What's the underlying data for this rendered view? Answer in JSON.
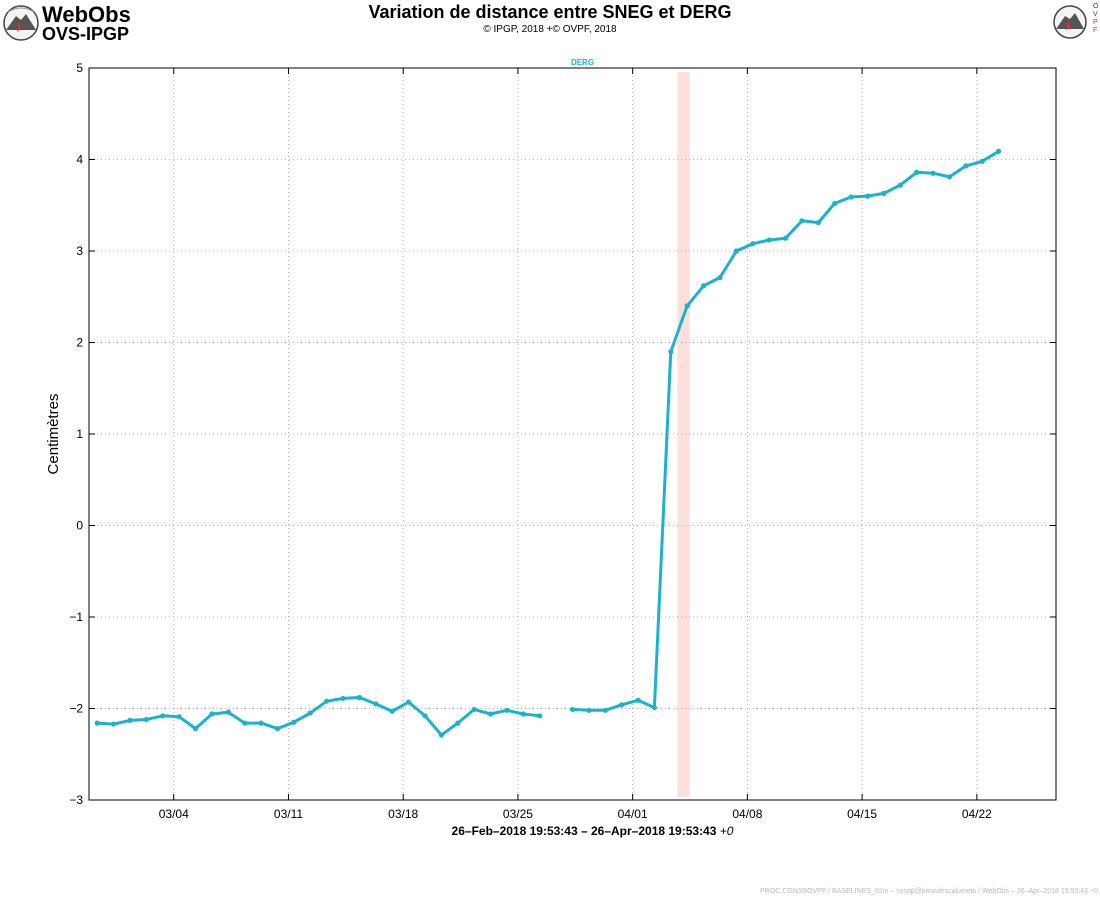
{
  "logo": {
    "line1": "WebObs",
    "line2": "OVS-IPGP",
    "right_logo_text": "OVPF"
  },
  "title": "Variation de distance entre SNEG et DERG",
  "subtitle": "© IPGP, 2018 +© OVPF, 2018",
  "footer": "PROC.CGNSSOVPF / BASELINES_02m – sysop@pitondescalumets / WebObs – 26–Apr–2018 19:53:43 +0",
  "colors": {
    "series": "#1fb1c9",
    "event_band": "#fde0dc",
    "logo_red": "#e02b2b"
  },
  "chart_data": {
    "type": "line",
    "title": "Variation de distance entre SNEG et DERG",
    "ylabel": "Centimètres",
    "xlabel": "26–Feb–2018 19:53:43 – 26–Apr–2018 19:53:43",
    "xlabel_suffix": "+0",
    "series_label": "DERG",
    "x_range_days": [
      0,
      59
    ],
    "ylim": [
      -3,
      5
    ],
    "yticks": [
      -3,
      -2,
      -1,
      0,
      1,
      2,
      3,
      4,
      5
    ],
    "xticks": [
      {
        "label": "03/04",
        "day": 5.17
      },
      {
        "label": "03/11",
        "day": 12.17
      },
      {
        "label": "03/18",
        "day": 19.17
      },
      {
        "label": "03/25",
        "day": 26.17
      },
      {
        "label": "04/01",
        "day": 33.17
      },
      {
        "label": "04/08",
        "day": 40.17
      },
      {
        "label": "04/15",
        "day": 47.17
      },
      {
        "label": "04/22",
        "day": 54.17
      }
    ],
    "grid": true,
    "event_band": {
      "start_day": 35.9,
      "end_day": 36.65
    },
    "series": [
      {
        "segments": [
          [
            [
              0.5,
              -2.16
            ],
            [
              1.5,
              -2.17
            ],
            [
              2.5,
              -2.13
            ],
            [
              3.5,
              -2.12
            ],
            [
              4.5,
              -2.08
            ],
            [
              5.5,
              -2.09
            ],
            [
              6.5,
              -2.22
            ],
            [
              7.5,
              -2.06
            ],
            [
              8.5,
              -2.04
            ],
            [
              9.5,
              -2.16
            ],
            [
              10.5,
              -2.16
            ],
            [
              11.5,
              -2.22
            ],
            [
              12.5,
              -2.15
            ],
            [
              13.5,
              -2.05
            ],
            [
              14.5,
              -1.92
            ],
            [
              15.5,
              -1.89
            ],
            [
              16.5,
              -1.88
            ],
            [
              17.5,
              -1.95
            ],
            [
              18.5,
              -2.03
            ],
            [
              19.5,
              -1.93
            ],
            [
              20.5,
              -2.08
            ],
            [
              21.5,
              -2.29
            ],
            [
              22.5,
              -2.16
            ],
            [
              23.5,
              -2.01
            ],
            [
              24.5,
              -2.06
            ],
            [
              25.5,
              -2.02
            ],
            [
              26.5,
              -2.06
            ],
            [
              27.5,
              -2.08
            ]
          ],
          [
            [
              29.5,
              -2.01
            ],
            [
              30.5,
              -2.02
            ],
            [
              31.5,
              -2.02
            ],
            [
              32.5,
              -1.96
            ],
            [
              33.5,
              -1.91
            ],
            [
              34.5,
              -1.99
            ],
            [
              35.5,
              1.9
            ],
            [
              36.5,
              2.4
            ],
            [
              37.5,
              2.62
            ],
            [
              38.5,
              2.71
            ],
            [
              39.5,
              3.0
            ],
            [
              40.5,
              3.08
            ],
            [
              41.5,
              3.12
            ],
            [
              42.5,
              3.14
            ],
            [
              43.5,
              3.33
            ],
            [
              44.5,
              3.31
            ],
            [
              45.5,
              3.52
            ],
            [
              46.5,
              3.59
            ],
            [
              47.5,
              3.6
            ],
            [
              48.5,
              3.63
            ],
            [
              49.5,
              3.72
            ],
            [
              50.5,
              3.86
            ],
            [
              51.5,
              3.85
            ],
            [
              52.5,
              3.81
            ],
            [
              53.5,
              3.93
            ],
            [
              54.5,
              3.98
            ],
            [
              55.5,
              4.09
            ]
          ]
        ]
      }
    ]
  }
}
